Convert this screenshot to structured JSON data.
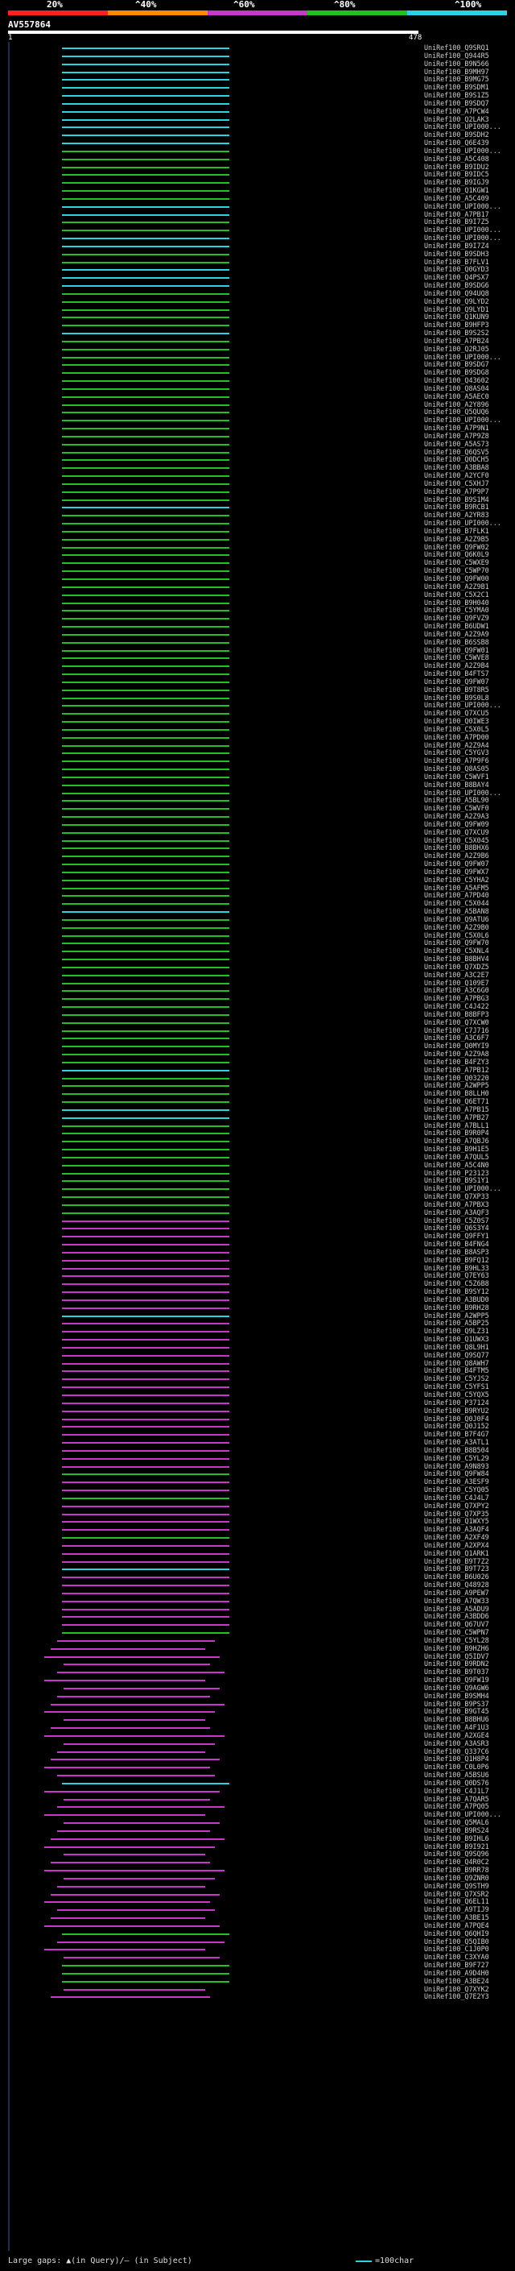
{
  "legend": {
    "labels": [
      "20%",
      "^40%",
      "^60%",
      "^80%",
      "^100%"
    ],
    "colors": [
      "#ff2020",
      "#ff8a00",
      "#c838c8",
      "#22c020",
      "#2ad3e0"
    ]
  },
  "query": {
    "id": "AV557864",
    "start": "1",
    "end": "478"
  },
  "hits": [
    {
      "label": "UniRef100_Q9SRQ1",
      "color": "#2ad3e0"
    },
    {
      "label": "UniRef100_Q944R5",
      "color": "#2ad3e0"
    },
    {
      "label": "UniRef100_B9N566",
      "color": "#2ad3e0"
    },
    {
      "label": "UniRef100_B9MH97",
      "color": "#2ad3e0"
    },
    {
      "label": "UniRef100_B9MG75",
      "color": "#2ad3e0"
    },
    {
      "label": "UniRef100_B9SDM1",
      "color": "#2ad3e0"
    },
    {
      "label": "UniRef100_B9S1Z5",
      "color": "#2ad3e0"
    },
    {
      "label": "UniRef100_B9SDQ7",
      "color": "#2ad3e0"
    },
    {
      "label": "UniRef100_A7PCW4",
      "color": "#2ad3e0"
    },
    {
      "label": "UniRef100_Q2LAK3",
      "color": "#2ad3e0"
    },
    {
      "label": "UniRef100_UPI000...",
      "color": "#2ad3e0"
    },
    {
      "label": "UniRef100_B9SDH2",
      "color": "#2ad3e0"
    },
    {
      "label": "UniRef100_Q6E439",
      "color": "#2ad3e0"
    },
    {
      "label": "UniRef100_UPI000...",
      "color": "#22c020"
    },
    {
      "label": "UniRef100_A5C408",
      "color": "#22c020"
    },
    {
      "label": "UniRef100_B9IDU2",
      "color": "#22c020"
    },
    {
      "label": "UniRef100_B9IDC5",
      "color": "#22c020"
    },
    {
      "label": "UniRef100_B9IGJ9",
      "color": "#22c020"
    },
    {
      "label": "UniRef100_Q1KGW1",
      "color": "#22c020"
    },
    {
      "label": "UniRef100_A5C409",
      "color": "#22c020"
    },
    {
      "label": "UniRef100_UPI000...",
      "color": "#2ad3e0"
    },
    {
      "label": "UniRef100_A7PB17",
      "color": "#2ad3e0"
    },
    {
      "label": "UniRef100_B9I7Z5",
      "color": "#22c020"
    },
    {
      "label": "UniRef100_UPI000...",
      "color": "#22c020"
    },
    {
      "label": "UniRef100_UPI000...",
      "color": "#2ad3e0"
    },
    {
      "label": "UniRef100_B9I7Z4",
      "color": "#2ad3e0"
    },
    {
      "label": "UniRef100_B9SDH3",
      "color": "#22c020"
    },
    {
      "label": "UniRef100_B7FLV1",
      "color": "#22c020"
    },
    {
      "label": "UniRef100_Q0GYD3",
      "color": "#2ad3e0"
    },
    {
      "label": "UniRef100_Q4PSX7",
      "color": "#2ad3e0"
    },
    {
      "label": "UniRef100_B9SDG6",
      "color": "#2ad3e0"
    },
    {
      "label": "UniRef100_Q94UQ8",
      "color": "#22c020"
    },
    {
      "label": "UniRef100_Q9LYD2",
      "color": "#22c020"
    },
    {
      "label": "UniRef100_Q9LYD1",
      "color": "#22c020"
    },
    {
      "label": "UniRef100_Q1KUN9",
      "color": "#22c020"
    },
    {
      "label": "UniRef100_B9HFP3",
      "color": "#22c020"
    },
    {
      "label": "UniRef100_B9S2S2",
      "color": "#2ad3e0"
    },
    {
      "label": "UniRef100_A7PB24",
      "color": "#22c020"
    },
    {
      "label": "UniRef100_Q2RJ05",
      "color": "#22c020"
    },
    {
      "label": "UniRef100_UPI000...",
      "color": "#22c020"
    },
    {
      "label": "UniRef100_B9SDG7",
      "color": "#22c020"
    },
    {
      "label": "UniRef100_B9SDG8",
      "color": "#22c020"
    },
    {
      "label": "UniRef100_Q43602",
      "color": "#22c020"
    },
    {
      "label": "UniRef100_Q8AS04",
      "color": "#22c020"
    },
    {
      "label": "UniRef100_A5AEC0",
      "color": "#22c020"
    },
    {
      "label": "UniRef100_A2Y896",
      "color": "#22c020"
    },
    {
      "label": "UniRef100_Q5QUQ6",
      "color": "#22c020"
    },
    {
      "label": "UniRef100_UPI000...",
      "color": "#22c020"
    },
    {
      "label": "UniRef100_A7P9N1",
      "color": "#22c020"
    },
    {
      "label": "UniRef100_A7P9Z8",
      "color": "#22c020"
    },
    {
      "label": "UniRef100_A5AS73",
      "color": "#22c020"
    },
    {
      "label": "UniRef100_Q6QSV5",
      "color": "#22c020"
    },
    {
      "label": "UniRef100_Q0DCH5",
      "color": "#22c020"
    },
    {
      "label": "UniRef100_A3BBA8",
      "color": "#22c020"
    },
    {
      "label": "UniRef100_A2YCF0",
      "color": "#22c020"
    },
    {
      "label": "UniRef100_C5XHJ7",
      "color": "#22c020"
    },
    {
      "label": "UniRef100_A7P9P7",
      "color": "#22c020"
    },
    {
      "label": "UniRef100_B9S1M4",
      "color": "#22c020"
    },
    {
      "label": "UniRef100_B9RCB1",
      "color": "#2ad3e0"
    },
    {
      "label": "UniRef100_A2YR83",
      "color": "#22c020"
    },
    {
      "label": "UniRef100_UPI000...",
      "color": "#22c020"
    },
    {
      "label": "UniRef100_B7FLK1",
      "color": "#22c020"
    },
    {
      "label": "UniRef100_A2Z9B5",
      "color": "#22c020"
    },
    {
      "label": "UniRef100_Q9FW02",
      "color": "#22c020"
    },
    {
      "label": "UniRef100_Q6K0L9",
      "color": "#22c020"
    },
    {
      "label": "UniRef100_C5WXE9",
      "color": "#22c020"
    },
    {
      "label": "UniRef100_C5WP70",
      "color": "#22c020"
    },
    {
      "label": "UniRef100_Q9FW00",
      "color": "#22c020"
    },
    {
      "label": "UniRef100_A2Z9B1",
      "color": "#22c020"
    },
    {
      "label": "UniRef100_C5X2C1",
      "color": "#22c020"
    },
    {
      "label": "UniRef100_B9H040",
      "color": "#22c020"
    },
    {
      "label": "UniRef100_C5YMA0",
      "color": "#22c020"
    },
    {
      "label": "UniRef100_Q9FVZ9",
      "color": "#22c020"
    },
    {
      "label": "UniRef100_B6UDW1",
      "color": "#22c020"
    },
    {
      "label": "UniRef100_A2Z9A9",
      "color": "#22c020"
    },
    {
      "label": "UniRef100_B6SSB8",
      "color": "#22c020"
    },
    {
      "label": "UniRef100_Q9FW01",
      "color": "#22c020"
    },
    {
      "label": "UniRef100_C5WVE8",
      "color": "#22c020"
    },
    {
      "label": "UniRef100_A2Z9B4",
      "color": "#22c020"
    },
    {
      "label": "UniRef100_B4FTS7",
      "color": "#22c020"
    },
    {
      "label": "UniRef100_Q9FW07",
      "color": "#22c020"
    },
    {
      "label": "UniRef100_B9T8R5",
      "color": "#22c020"
    },
    {
      "label": "UniRef100_B9S0L8",
      "color": "#22c020"
    },
    {
      "label": "UniRef100_UPI000...",
      "color": "#22c020"
    },
    {
      "label": "UniRef100_Q7XCU5",
      "color": "#22c020"
    },
    {
      "label": "UniRef100_Q0IWE3",
      "color": "#22c020"
    },
    {
      "label": "UniRef100_C5X0L5",
      "color": "#22c020"
    },
    {
      "label": "UniRef100_A7PD00",
      "color": "#22c020"
    },
    {
      "label": "UniRef100_A2Z9A4",
      "color": "#22c020"
    },
    {
      "label": "UniRef100_C5YGV3",
      "color": "#22c020"
    },
    {
      "label": "UniRef100_A7P9F6",
      "color": "#22c020"
    },
    {
      "label": "UniRef100_Q8AS05",
      "color": "#22c020"
    },
    {
      "label": "UniRef100_C5WVF1",
      "color": "#22c020"
    },
    {
      "label": "UniRef100_B8BAY4",
      "color": "#22c020"
    },
    {
      "label": "UniRef100_UPI000...",
      "color": "#22c020"
    },
    {
      "label": "UniRef100_A5BL90",
      "color": "#22c020"
    },
    {
      "label": "UniRef100_C5WVF0",
      "color": "#22c020"
    },
    {
      "label": "UniRef100_A2Z9A3",
      "color": "#22c020"
    },
    {
      "label": "UniRef100_Q9FW09",
      "color": "#22c020"
    },
    {
      "label": "UniRef100_Q7XCU9",
      "color": "#22c020"
    },
    {
      "label": "UniRef100_C5X045",
      "color": "#22c020"
    },
    {
      "label": "UniRef100_B8BHX6",
      "color": "#22c020"
    },
    {
      "label": "UniRef100_A2Z9B6",
      "color": "#22c020"
    },
    {
      "label": "UniRef100_Q9FW07",
      "color": "#22c020"
    },
    {
      "label": "UniRef100_Q9FWX7",
      "color": "#22c020"
    },
    {
      "label": "UniRef100_C5YHA2",
      "color": "#22c020"
    },
    {
      "label": "UniRef100_A5AFM5",
      "color": "#22c020"
    },
    {
      "label": "UniRef100_A7PD40",
      "color": "#22c020"
    },
    {
      "label": "UniRef100_C5X044",
      "color": "#22c020"
    },
    {
      "label": "UniRef100_A5BAN8",
      "color": "#2ad3e0"
    },
    {
      "label": "UniRef100_Q9ATU6",
      "color": "#22c020"
    },
    {
      "label": "UniRef100_A2Z9B0",
      "color": "#22c020"
    },
    {
      "label": "UniRef100_C5X0L6",
      "color": "#22c020"
    },
    {
      "label": "UniRef100_Q9FW70",
      "color": "#22c020"
    },
    {
      "label": "UniRef100_C5XNL4",
      "color": "#22c020"
    },
    {
      "label": "UniRef100_B8BHV4",
      "color": "#22c020"
    },
    {
      "label": "UniRef100_Q7XDZ5",
      "color": "#22c020"
    },
    {
      "label": "UniRef100_A3C2E7",
      "color": "#22c020"
    },
    {
      "label": "UniRef100_Q109E7",
      "color": "#22c020"
    },
    {
      "label": "UniRef100_A3C6G0",
      "color": "#22c020"
    },
    {
      "label": "UniRef100_A7PBG3",
      "color": "#22c020"
    },
    {
      "label": "UniRef100_C4J422",
      "color": "#22c020"
    },
    {
      "label": "UniRef100_B8BFP3",
      "color": "#22c020"
    },
    {
      "label": "UniRef100_Q7XCW0",
      "color": "#22c020"
    },
    {
      "label": "UniRef100_C7J716",
      "color": "#22c020"
    },
    {
      "label": "UniRef100_A3C6F7",
      "color": "#22c020"
    },
    {
      "label": "UniRef100_Q0MYI9",
      "color": "#22c020"
    },
    {
      "label": "UniRef100_A2Z9A8",
      "color": "#22c020"
    },
    {
      "label": "UniRef100_B4FZY3",
      "color": "#22c020"
    },
    {
      "label": "UniRef100_A7PB12",
      "color": "#2ad3e0"
    },
    {
      "label": "UniRef100_Q03220",
      "color": "#22c020"
    },
    {
      "label": "UniRef100_A2WPP5",
      "color": "#22c020"
    },
    {
      "label": "UniRef100_B8LLH0",
      "color": "#22c020"
    },
    {
      "label": "UniRef100_Q6ET71",
      "color": "#22c020"
    },
    {
      "label": "UniRef100_A7PB15",
      "color": "#2ad3e0"
    },
    {
      "label": "UniRef100_A7PB27",
      "color": "#2ad3e0"
    },
    {
      "label": "UniRef100_A7BLL1",
      "color": "#22c020"
    },
    {
      "label": "UniRef100_B9R0P4",
      "color": "#22c020"
    },
    {
      "label": "UniRef100_A7QBJ6",
      "color": "#22c020"
    },
    {
      "label": "UniRef100_B9H1E5",
      "color": "#22c020"
    },
    {
      "label": "UniRef100_A7QUL5",
      "color": "#22c020"
    },
    {
      "label": "UniRef100_A5C4N0",
      "color": "#22c020"
    },
    {
      "label": "UniRef100_P23123",
      "color": "#22c020"
    },
    {
      "label": "UniRef100_B9S1Y1",
      "color": "#22c020"
    },
    {
      "label": "UniRef100_UPI000...",
      "color": "#22c020"
    },
    {
      "label": "UniRef100_Q7XP33",
      "color": "#22c020"
    },
    {
      "label": "UniRef100_A7PBX3",
      "color": "#22c020"
    },
    {
      "label": "UniRef100_A3AQF3",
      "color": "#22c020"
    },
    {
      "label": "UniRef100_C5Z0S7",
      "color": "#c838c8"
    },
    {
      "label": "UniRef100_Q6S3Y4",
      "color": "#c838c8"
    },
    {
      "label": "UniRef100_Q9FFY1",
      "color": "#c838c8"
    },
    {
      "label": "UniRef100_B4FNG4",
      "color": "#c838c8"
    },
    {
      "label": "UniRef100_B8ASP3",
      "color": "#c838c8"
    },
    {
      "label": "UniRef100_B9FQ12",
      "color": "#c838c8"
    },
    {
      "label": "UniRef100_B9HL33",
      "color": "#c838c8"
    },
    {
      "label": "UniRef100_Q7EY63",
      "color": "#c838c8"
    },
    {
      "label": "UniRef100_C5Z6B8",
      "color": "#c838c8"
    },
    {
      "label": "UniRef100_B9SY12",
      "color": "#c838c8"
    },
    {
      "label": "UniRef100_A3BUD0",
      "color": "#c838c8"
    },
    {
      "label": "UniRef100_B9RH28",
      "color": "#c838c8"
    },
    {
      "label": "UniRef100_A2WPP5",
      "color": "#2ad3e0"
    },
    {
      "label": "UniRef100_A5BP25",
      "color": "#c838c8"
    },
    {
      "label": "UniRef100_Q9LZ31",
      "color": "#c838c8"
    },
    {
      "label": "UniRef100_Q1UWX3",
      "color": "#c838c8"
    },
    {
      "label": "UniRef100_Q8L9H1",
      "color": "#c838c8"
    },
    {
      "label": "UniRef100_Q9SQ77",
      "color": "#c838c8"
    },
    {
      "label": "UniRef100_Q8AWH7",
      "color": "#c838c8"
    },
    {
      "label": "UniRef100_B4FTM5",
      "color": "#c838c8"
    },
    {
      "label": "UniRef100_C5YJS2",
      "color": "#c838c8"
    },
    {
      "label": "UniRef100_C5YFS1",
      "color": "#c838c8"
    },
    {
      "label": "UniRef100_C5YQX5",
      "color": "#c838c8"
    },
    {
      "label": "UniRef100_P37124",
      "color": "#c838c8"
    },
    {
      "label": "UniRef100_B9RYU2",
      "color": "#c838c8"
    },
    {
      "label": "UniRef100_Q0J0F4",
      "color": "#c838c8"
    },
    {
      "label": "UniRef100_Q0J152",
      "color": "#c838c8"
    },
    {
      "label": "UniRef100_B7F4G7",
      "color": "#c838c8"
    },
    {
      "label": "UniRef100_A3ATL1",
      "color": "#c838c8"
    },
    {
      "label": "UniRef100_B8B504",
      "color": "#c838c8"
    },
    {
      "label": "UniRef100_C5YL29",
      "color": "#c838c8"
    },
    {
      "label": "UniRef100_A9N893",
      "color": "#c838c8"
    },
    {
      "label": "UniRef100_Q9FW84",
      "color": "#22c020"
    },
    {
      "label": "UniRef100_A3ESF9",
      "color": "#c838c8"
    },
    {
      "label": "UniRef100_C5YQ05",
      "color": "#c838c8"
    },
    {
      "label": "UniRef100_C4J4L7",
      "color": "#22c020"
    },
    {
      "label": "UniRef100_Q7XPY2",
      "color": "#c838c8"
    },
    {
      "label": "UniRef100_Q7XP35",
      "color": "#c838c8"
    },
    {
      "label": "UniRef100_Q1WXY5",
      "color": "#c838c8"
    },
    {
      "label": "UniRef100_A3AQF4",
      "color": "#c838c8"
    },
    {
      "label": "UniRef100_A2XF49",
      "color": "#22c020"
    },
    {
      "label": "UniRef100_A2XPX4",
      "color": "#c838c8"
    },
    {
      "label": "UniRef100_Q1ARK1",
      "color": "#c838c8"
    },
    {
      "label": "UniRef100_B9T7Z2",
      "color": "#c838c8"
    },
    {
      "label": "UniRef100_B9T723",
      "color": "#2ad3e0"
    },
    {
      "label": "UniRef100_B6U026",
      "color": "#c838c8"
    },
    {
      "label": "UniRef100_Q48928",
      "color": "#c838c8"
    },
    {
      "label": "UniRef100_A9PEW7",
      "color": "#c838c8"
    },
    {
      "label": "UniRef100_A7QW33",
      "color": "#c838c8"
    },
    {
      "label": "UniRef100_A5ADU9",
      "color": "#c838c8"
    },
    {
      "label": "UniRef100_A3BDD6",
      "color": "#c838c8"
    },
    {
      "label": "UniRef100_Q67UV7",
      "color": "#c838c8"
    },
    {
      "label": "UniRef100_C5WPN7",
      "color": "#22c020"
    },
    {
      "label": "UniRef100_C5YL28",
      "color": "#c838c8"
    },
    {
      "label": "UniRef100_B9HZH6",
      "color": "#c838c8"
    },
    {
      "label": "UniRef100_Q5IDV7",
      "color": "#c838c8"
    },
    {
      "label": "UniRef100_B9RDN2",
      "color": "#c838c8"
    },
    {
      "label": "UniRef100_B9T037",
      "color": "#c838c8"
    },
    {
      "label": "UniRef100_Q9FW19",
      "color": "#c838c8"
    },
    {
      "label": "UniRef100_Q9AGW6",
      "color": "#c838c8"
    },
    {
      "label": "UniRef100_B9SMH4",
      "color": "#c838c8"
    },
    {
      "label": "UniRef100_B9PS37",
      "color": "#c838c8"
    },
    {
      "label": "UniRef100_B9GT45",
      "color": "#c838c8"
    },
    {
      "label": "UniRef100_B8BHU6",
      "color": "#c838c8"
    },
    {
      "label": "UniRef100_A4F1U3",
      "color": "#c838c8"
    },
    {
      "label": "UniRef100_A2XGE4",
      "color": "#c838c8"
    },
    {
      "label": "UniRef100_A3ASR3",
      "color": "#c838c8"
    },
    {
      "label": "UniRef100_Q337C6",
      "color": "#c838c8"
    },
    {
      "label": "UniRef100_Q1H8P4",
      "color": "#c838c8"
    },
    {
      "label": "UniRef100_C0L0P6",
      "color": "#c838c8"
    },
    {
      "label": "UniRef100_A5BSU6",
      "color": "#c838c8"
    },
    {
      "label": "UniRef100_Q0DS76",
      "color": "#2ad3e0"
    },
    {
      "label": "UniRef100_C4J1L7",
      "color": "#c838c8"
    },
    {
      "label": "UniRef100_A7QAR5",
      "color": "#c838c8"
    },
    {
      "label": "UniRef100_A7PQ05",
      "color": "#c838c8"
    },
    {
      "label": "UniRef100_UPI000...",
      "color": "#c838c8"
    },
    {
      "label": "UniRef100_Q5MAL6",
      "color": "#c838c8"
    },
    {
      "label": "UniRef100_B9RS24",
      "color": "#c838c8"
    },
    {
      "label": "UniRef100_B9IHL6",
      "color": "#c838c8"
    },
    {
      "label": "UniRef100_B9I921",
      "color": "#c838c8"
    },
    {
      "label": "UniRef100_Q9SQ96",
      "color": "#c838c8"
    },
    {
      "label": "UniRef100_Q4R0C2",
      "color": "#c838c8"
    },
    {
      "label": "UniRef100_B9RR78",
      "color": "#c838c8"
    },
    {
      "label": "UniRef100_Q9ZNR0",
      "color": "#c838c8"
    },
    {
      "label": "UniRef100_Q9STH9",
      "color": "#c838c8"
    },
    {
      "label": "UniRef100_Q7XSR2",
      "color": "#c838c8"
    },
    {
      "label": "UniRef100_Q6EL11",
      "color": "#c838c8"
    },
    {
      "label": "UniRef100_A9TIJ9",
      "color": "#c838c8"
    },
    {
      "label": "UniRef100_A3BE15",
      "color": "#c838c8"
    },
    {
      "label": "UniRef100_A7PQE4",
      "color": "#c838c8"
    },
    {
      "label": "UniRef100_Q6QHI9",
      "color": "#22c020"
    },
    {
      "label": "UniRef100_Q5QIB0",
      "color": "#c838c8"
    },
    {
      "label": "UniRef100_C1J0P0",
      "color": "#c838c8"
    },
    {
      "label": "UniRef100_C3XYA0",
      "color": "#c838c8"
    },
    {
      "label": "UniRef100_B9F727",
      "color": "#22c020"
    },
    {
      "label": "UniRef100_A9D4H0",
      "color": "#22c020"
    },
    {
      "label": "UniRef100_A3BE24",
      "color": "#22c020"
    },
    {
      "label": "UniRef100_Q7XYK2",
      "color": "#c838c8"
    },
    {
      "label": "UniRef100_Q7E2Y3",
      "color": "#c838c8"
    }
  ],
  "footer": {
    "text": "Large gaps: ▲(in Query)/– (in Subject)",
    "scale": "=100char"
  }
}
